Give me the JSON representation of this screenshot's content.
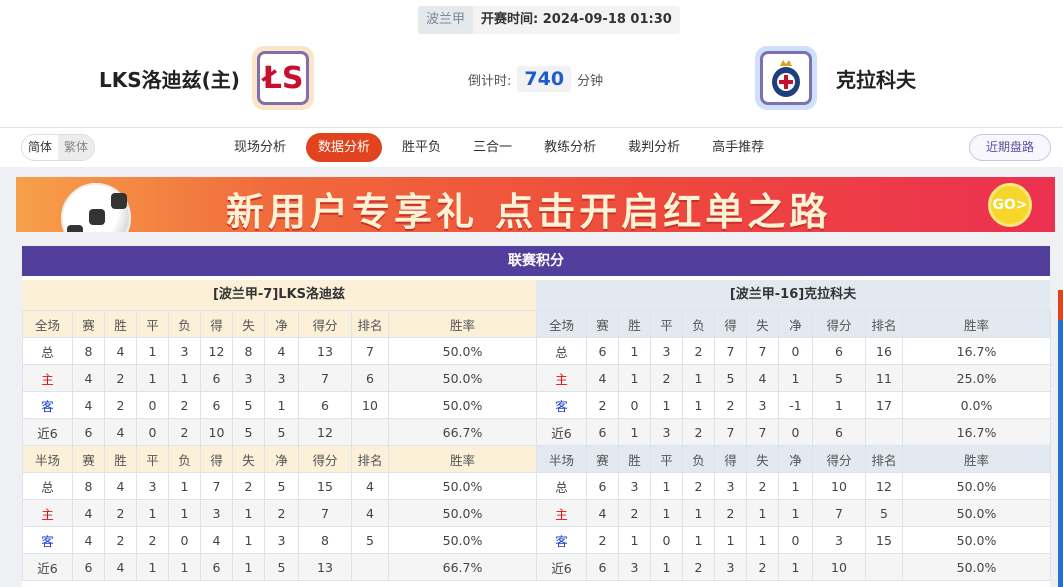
{
  "header": {
    "league": "波兰甲",
    "kickoff_label": "开赛时间:",
    "kickoff": "2024-09-18 01:30",
    "home_team": "LKS洛迪兹(主)",
    "away_team": "克拉科夫",
    "countdown_label": "倒计时:",
    "countdown_value": "740",
    "countdown_unit": "分钟"
  },
  "nav": {
    "lang": [
      "简体",
      "繁体"
    ],
    "tabs": [
      "现场分析",
      "数据分析",
      "胜平负",
      "三合一",
      "教练分析",
      "裁判分析",
      "高手推荐"
    ],
    "active_tab": 1,
    "recent": "近期盘路"
  },
  "banner": {
    "text": "新用户专享礼  点击开启红单之路",
    "coin": "GO>"
  },
  "standings": {
    "title": "联赛积分",
    "columns": [
      "赛",
      "胜",
      "平",
      "负",
      "得",
      "失",
      "净",
      "得分",
      "排名",
      "胜率"
    ],
    "full_label": "全场",
    "half_label": "半场",
    "teams": [
      {
        "name": "[波兰甲-7]LKS洛迪兹",
        "full": [
          [
            "总",
            "8",
            "4",
            "1",
            "3",
            "12",
            "8",
            "4",
            "13",
            "7",
            "50.0%"
          ],
          [
            "主",
            "4",
            "2",
            "1",
            "1",
            "6",
            "3",
            "3",
            "7",
            "6",
            "50.0%"
          ],
          [
            "客",
            "4",
            "2",
            "0",
            "2",
            "6",
            "5",
            "1",
            "6",
            "10",
            "50.0%"
          ],
          [
            "近6",
            "6",
            "4",
            "0",
            "2",
            "10",
            "5",
            "5",
            "12",
            "",
            "66.7%"
          ]
        ],
        "half": [
          [
            "总",
            "8",
            "4",
            "3",
            "1",
            "7",
            "2",
            "5",
            "15",
            "4",
            "50.0%"
          ],
          [
            "主",
            "4",
            "2",
            "1",
            "1",
            "3",
            "1",
            "2",
            "7",
            "4",
            "50.0%"
          ],
          [
            "客",
            "4",
            "2",
            "2",
            "0",
            "4",
            "1",
            "3",
            "8",
            "5",
            "50.0%"
          ],
          [
            "近6",
            "6",
            "4",
            "1",
            "1",
            "6",
            "1",
            "5",
            "13",
            "",
            "66.7%"
          ]
        ]
      },
      {
        "name": "[波兰甲-16]克拉科夫",
        "full": [
          [
            "总",
            "6",
            "1",
            "3",
            "2",
            "7",
            "7",
            "0",
            "6",
            "16",
            "16.7%"
          ],
          [
            "主",
            "4",
            "1",
            "2",
            "1",
            "5",
            "4",
            "1",
            "5",
            "11",
            "25.0%"
          ],
          [
            "客",
            "2",
            "0",
            "1",
            "1",
            "2",
            "3",
            "-1",
            "1",
            "17",
            "0.0%"
          ],
          [
            "近6",
            "6",
            "1",
            "3",
            "2",
            "7",
            "7",
            "0",
            "6",
            "",
            "16.7%"
          ]
        ],
        "half": [
          [
            "总",
            "6",
            "3",
            "1",
            "2",
            "3",
            "2",
            "1",
            "10",
            "12",
            "50.0%"
          ],
          [
            "主",
            "4",
            "2",
            "1",
            "1",
            "2",
            "1",
            "1",
            "7",
            "5",
            "50.0%"
          ],
          [
            "客",
            "2",
            "1",
            "0",
            "1",
            "1",
            "1",
            "0",
            "3",
            "15",
            "50.0%"
          ],
          [
            "近6",
            "6",
            "3",
            "1",
            "2",
            "3",
            "2",
            "1",
            "10",
            "",
            "50.0%"
          ]
        ]
      }
    ]
  },
  "colors": {
    "accent": "#e0431e",
    "title_bar": "#523e9c",
    "home_red": "#e01010",
    "away_blue": "#1a3fd0"
  }
}
